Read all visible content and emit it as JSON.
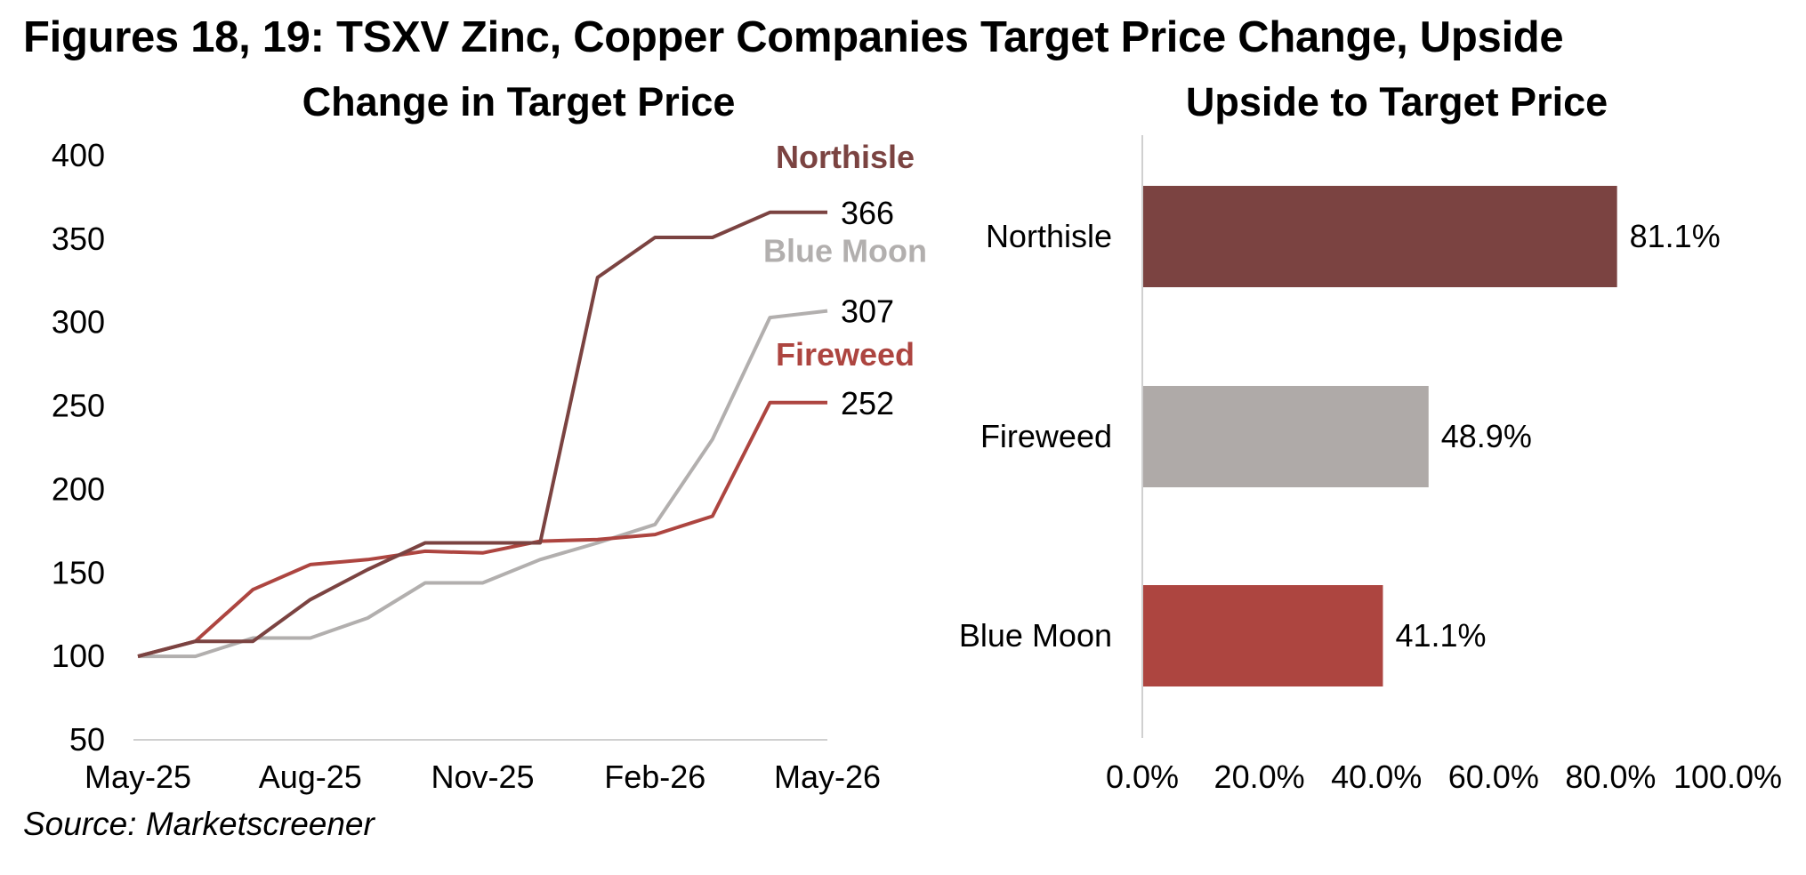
{
  "title": "Figures 18, 19: TSXV Zinc, Copper Companies Target Price Change, Upside",
  "source": "Source: Marketscreener",
  "colors": {
    "northisle": "#7b4341",
    "blue_moon_line": "#b2afae",
    "fireweed_line": "#ad4540",
    "fireweed_bar": "#afaaa8",
    "blue_moon_bar": "#ad4540",
    "axis": "#d0d0d0"
  },
  "chart_data": [
    {
      "type": "line",
      "title": "Change in Target Price",
      "xlabel": "",
      "ylabel": "",
      "x_tick_labels": [
        "May-25",
        "Aug-25",
        "Nov-25",
        "Feb-26",
        "May-26"
      ],
      "x_tick_positions": [
        0,
        3,
        6,
        9,
        12
      ],
      "ylim": [
        50,
        400
      ],
      "y_ticks": [
        50,
        100,
        150,
        200,
        250,
        300,
        350,
        400
      ],
      "x": [
        "May-25",
        "Jun-25",
        "Jul-25",
        "Aug-25",
        "Sep-25",
        "Oct-25",
        "Nov-25",
        "Dec-25",
        "Jan-26",
        "Feb-26",
        "Mar-26",
        "Apr-26",
        "May-26"
      ],
      "series": [
        {
          "name": "Northisle",
          "values": [
            100,
            109,
            109,
            134,
            152,
            168,
            168,
            168,
            327,
            351,
            351,
            366,
            366
          ],
          "end_label": "366",
          "color": "#7b4341"
        },
        {
          "name": "Blue Moon",
          "values": [
            100,
            100,
            111,
            111,
            123,
            144,
            144,
            158,
            168,
            179,
            230,
            303,
            307
          ],
          "end_label": "307",
          "color": "#b2afae"
        },
        {
          "name": "Fireweed",
          "values": [
            100,
            109,
            140,
            155,
            158,
            163,
            162,
            169,
            170,
            173,
            184,
            252,
            252
          ],
          "end_label": "252",
          "color": "#ad4540"
        }
      ]
    },
    {
      "type": "bar",
      "orientation": "horizontal",
      "title": "Upside to Target Price",
      "categories": [
        "Northisle",
        "Fireweed",
        "Blue Moon"
      ],
      "values": [
        81.1,
        48.9,
        41.1
      ],
      "value_labels": [
        "81.1%",
        "48.9%",
        "41.1%"
      ],
      "colors": [
        "#7b4341",
        "#afaaa8",
        "#ad4540"
      ],
      "xlim": [
        0,
        100
      ],
      "x_ticks": [
        0,
        20,
        40,
        60,
        80,
        100
      ],
      "x_tick_labels": [
        "0.0%",
        "20.0%",
        "40.0%",
        "60.0%",
        "80.0%",
        "100.0%"
      ]
    }
  ]
}
